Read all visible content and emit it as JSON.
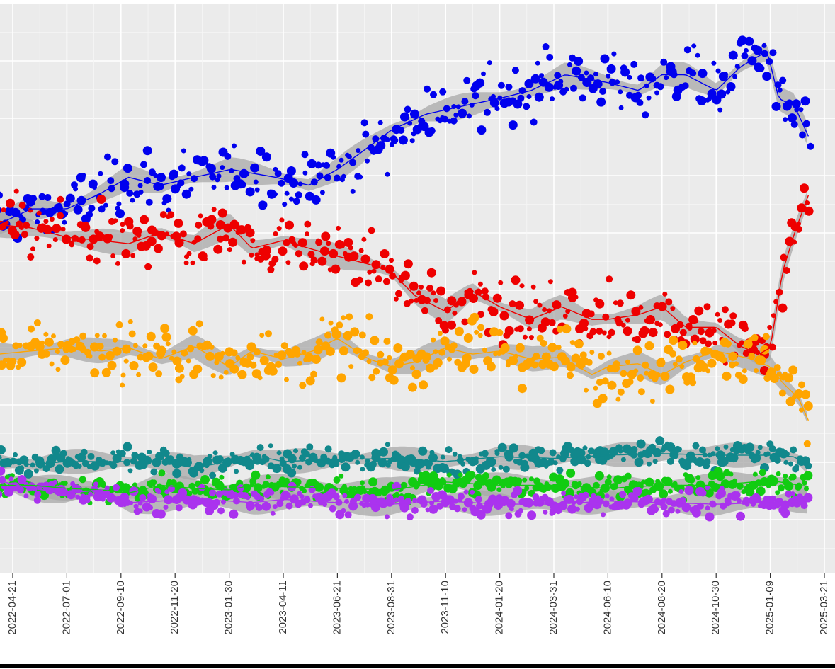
{
  "chart_data": {
    "type": "scatter",
    "title": "",
    "xlabel": "",
    "ylabel": "",
    "x_ticks": [
      "2022-04-21",
      "2022-07-01",
      "2022-09-10",
      "2022-11-20",
      "2023-01-30",
      "2023-04-11",
      "2023-06-21",
      "2023-08-31",
      "2023-11-10",
      "2024-01-20",
      "2024-03-31",
      "2024-06-10",
      "2024-08-20",
      "2024-10-30",
      "2025-01-09",
      "2025-03-21"
    ],
    "xlim": [
      "2022-04-01",
      "2025-03-21"
    ],
    "ylim": [
      0,
      35
    ],
    "y_tick_labels_visible": false,
    "grid": true,
    "legend": "none",
    "smoother_band": true,
    "series": [
      {
        "color": "#0000ee",
        "trend": [
          [
            "2022-04-01",
            22.0
          ],
          [
            "2022-05-15",
            23.0
          ],
          [
            "2022-07-01",
            23.0
          ],
          [
            "2022-08-15",
            24.0
          ],
          [
            "2022-09-20",
            25.0
          ],
          [
            "2022-11-01",
            24.5
          ],
          [
            "2022-12-15",
            25.0
          ],
          [
            "2023-02-01",
            25.5
          ],
          [
            "2023-04-01",
            25.0
          ],
          [
            "2023-05-15",
            24.5
          ],
          [
            "2023-06-21",
            25.5
          ],
          [
            "2023-07-20",
            26.5
          ],
          [
            "2023-08-31",
            28.0
          ],
          [
            "2023-10-15",
            29.0
          ],
          [
            "2023-12-01",
            29.5
          ],
          [
            "2024-01-20",
            30.0
          ],
          [
            "2024-03-01",
            30.5
          ],
          [
            "2024-04-15",
            31.5
          ],
          [
            "2024-06-10",
            31.0
          ],
          [
            "2024-07-20",
            30.5
          ],
          [
            "2024-08-20",
            31.5
          ],
          [
            "2024-09-20",
            31.5
          ],
          [
            "2024-10-30",
            30.5
          ],
          [
            "2024-12-01",
            32.0
          ],
          [
            "2025-01-05",
            33.0
          ],
          [
            "2025-01-20",
            30.0
          ],
          [
            "2025-02-10",
            29.5
          ],
          [
            "2025-03-01",
            27.5
          ]
        ]
      },
      {
        "color": "#ee0000",
        "trend": [
          [
            "2022-04-01",
            22.0
          ],
          [
            "2022-05-15",
            21.8
          ],
          [
            "2022-07-01",
            21.2
          ],
          [
            "2022-08-15",
            21.0
          ],
          [
            "2022-09-20",
            20.8
          ],
          [
            "2022-11-01",
            21.5
          ],
          [
            "2022-12-15",
            20.8
          ],
          [
            "2023-01-30",
            22.0
          ],
          [
            "2023-03-01",
            20.5
          ],
          [
            "2023-04-11",
            21.0
          ],
          [
            "2023-05-15",
            20.5
          ],
          [
            "2023-06-21",
            20.0
          ],
          [
            "2023-08-01",
            19.5
          ],
          [
            "2023-08-31",
            19.0
          ],
          [
            "2023-10-01",
            17.5
          ],
          [
            "2023-11-10",
            16.5
          ],
          [
            "2023-12-15",
            17.8
          ],
          [
            "2024-01-20",
            16.8
          ],
          [
            "2024-03-01",
            16.0
          ],
          [
            "2024-04-10",
            16.8
          ],
          [
            "2024-05-20",
            16.0
          ],
          [
            "2024-06-10",
            16.0
          ],
          [
            "2024-07-20",
            16.3
          ],
          [
            "2024-08-20",
            16.8
          ],
          [
            "2024-09-20",
            15.5
          ],
          [
            "2024-10-30",
            15.5
          ],
          [
            "2024-12-01",
            14.3
          ],
          [
            "2024-12-25",
            13.8
          ],
          [
            "2025-01-09",
            14.2
          ],
          [
            "2025-01-25",
            19.0
          ],
          [
            "2025-02-10",
            21.5
          ],
          [
            "2025-03-01",
            24.0
          ]
        ]
      },
      {
        "color": "#ffa500",
        "trend": [
          [
            "2022-04-01",
            13.8
          ],
          [
            "2022-05-15",
            14.0
          ],
          [
            "2022-07-01",
            14.2
          ],
          [
            "2022-08-15",
            14.0
          ],
          [
            "2022-09-20",
            14.2
          ],
          [
            "2022-11-01",
            13.5
          ],
          [
            "2022-12-15",
            14.3
          ],
          [
            "2023-01-30",
            13.0
          ],
          [
            "2023-03-01",
            14.0
          ],
          [
            "2023-04-11",
            13.5
          ],
          [
            "2023-05-20",
            14.0
          ],
          [
            "2023-06-21",
            14.8
          ],
          [
            "2023-08-01",
            13.5
          ],
          [
            "2023-08-31",
            13.0
          ],
          [
            "2023-10-01",
            13.3
          ],
          [
            "2023-11-10",
            14.2
          ],
          [
            "2023-12-15",
            13.8
          ],
          [
            "2024-01-20",
            14.0
          ],
          [
            "2024-03-01",
            13.5
          ],
          [
            "2024-04-10",
            13.6
          ],
          [
            "2024-05-20",
            12.5
          ],
          [
            "2024-06-10",
            13.0
          ],
          [
            "2024-07-20",
            13.2
          ],
          [
            "2024-08-20",
            12.5
          ],
          [
            "2024-09-20",
            13.3
          ],
          [
            "2024-10-30",
            14.0
          ],
          [
            "2024-12-15",
            13.5
          ],
          [
            "2025-01-09",
            13.0
          ],
          [
            "2025-01-25",
            12.0
          ],
          [
            "2025-02-15",
            11.0
          ],
          [
            "2025-03-01",
            9.5
          ]
        ]
      },
      {
        "color": "#11888c",
        "trend": [
          [
            "2022-04-01",
            7.0
          ],
          [
            "2022-05-15",
            6.8
          ],
          [
            "2022-07-01",
            7.0
          ],
          [
            "2022-08-15",
            7.0
          ],
          [
            "2022-09-20",
            7.0
          ],
          [
            "2022-11-01",
            7.0
          ],
          [
            "2022-12-15",
            6.6
          ],
          [
            "2023-01-30",
            7.0
          ],
          [
            "2023-03-01",
            7.4
          ],
          [
            "2023-04-11",
            7.0
          ],
          [
            "2023-06-01",
            7.1
          ],
          [
            "2023-08-31",
            7.2
          ],
          [
            "2023-11-10",
            7.0
          ],
          [
            "2024-01-20",
            7.3
          ],
          [
            "2024-03-31",
            7.2
          ],
          [
            "2024-06-10",
            7.4
          ],
          [
            "2024-08-20",
            7.5
          ],
          [
            "2024-10-30",
            7.4
          ],
          [
            "2025-01-09",
            7.4
          ],
          [
            "2025-02-10",
            7.3
          ],
          [
            "2025-03-01",
            6.5
          ]
        ]
      },
      {
        "color": "#11cc11",
        "trend": [
          [
            "2022-04-01",
            5.5
          ],
          [
            "2022-05-15",
            5.5
          ],
          [
            "2022-07-01",
            5.3
          ],
          [
            "2022-08-15",
            5.2
          ],
          [
            "2022-09-20",
            5.0
          ],
          [
            "2022-11-01",
            5.5
          ],
          [
            "2022-12-15",
            5.3
          ],
          [
            "2023-01-30",
            5.2
          ],
          [
            "2023-03-01",
            5.5
          ],
          [
            "2023-04-11",
            5.4
          ],
          [
            "2023-06-21",
            5.3
          ],
          [
            "2023-08-31",
            5.2
          ],
          [
            "2023-11-10",
            5.7
          ],
          [
            "2024-01-20",
            5.5
          ],
          [
            "2024-03-31",
            5.5
          ],
          [
            "2024-06-10",
            5.3
          ],
          [
            "2024-08-20",
            5.5
          ],
          [
            "2024-10-30",
            5.5
          ],
          [
            "2025-01-09",
            5.8
          ],
          [
            "2025-03-01",
            5.4
          ]
        ]
      },
      {
        "color": "#aa33ee",
        "trend": [
          [
            "2022-04-01",
            5.8
          ],
          [
            "2022-05-15",
            5.3
          ],
          [
            "2022-07-01",
            5.0
          ],
          [
            "2022-08-15",
            5.2
          ],
          [
            "2022-09-20",
            4.4
          ],
          [
            "2022-11-01",
            4.5
          ],
          [
            "2022-12-15",
            4.6
          ],
          [
            "2023-01-30",
            4.5
          ],
          [
            "2023-03-01",
            4.4
          ],
          [
            "2023-04-11",
            4.6
          ],
          [
            "2023-06-21",
            4.4
          ],
          [
            "2023-08-31",
            4.3
          ],
          [
            "2023-11-10",
            4.5
          ],
          [
            "2024-01-20",
            4.3
          ],
          [
            "2024-03-31",
            4.3
          ],
          [
            "2024-06-10",
            4.5
          ],
          [
            "2024-08-20",
            4.4
          ],
          [
            "2024-10-30",
            4.3
          ],
          [
            "2025-01-09",
            4.4
          ],
          [
            "2025-03-01",
            4.5
          ]
        ]
      }
    ]
  }
}
